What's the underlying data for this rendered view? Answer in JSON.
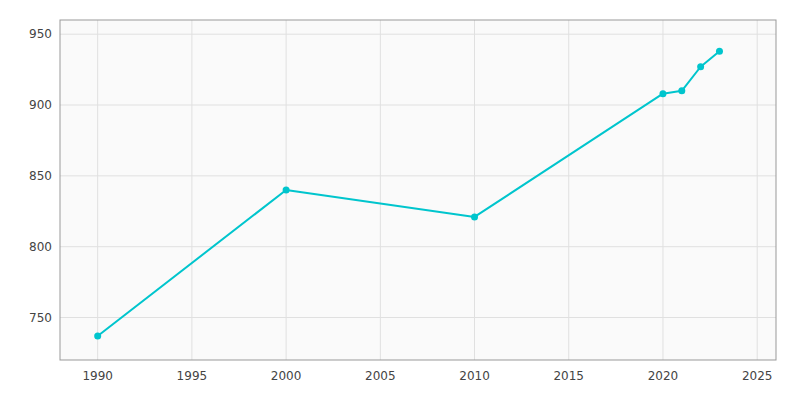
{
  "chart_data": {
    "type": "line",
    "x": [
      1990,
      2000,
      2010,
      2020,
      2021,
      2022,
      2023
    ],
    "values": [
      737,
      840,
      821,
      908,
      910,
      927,
      938
    ],
    "color": "#00C5CD",
    "marker": "circle",
    "xlim": [
      1988,
      2026
    ],
    "ylim": [
      720,
      960
    ],
    "xticks": [
      1990,
      1995,
      2000,
      2005,
      2010,
      2015,
      2020,
      2025
    ],
    "yticks": [
      750,
      800,
      850,
      900,
      950
    ],
    "grid": true
  }
}
